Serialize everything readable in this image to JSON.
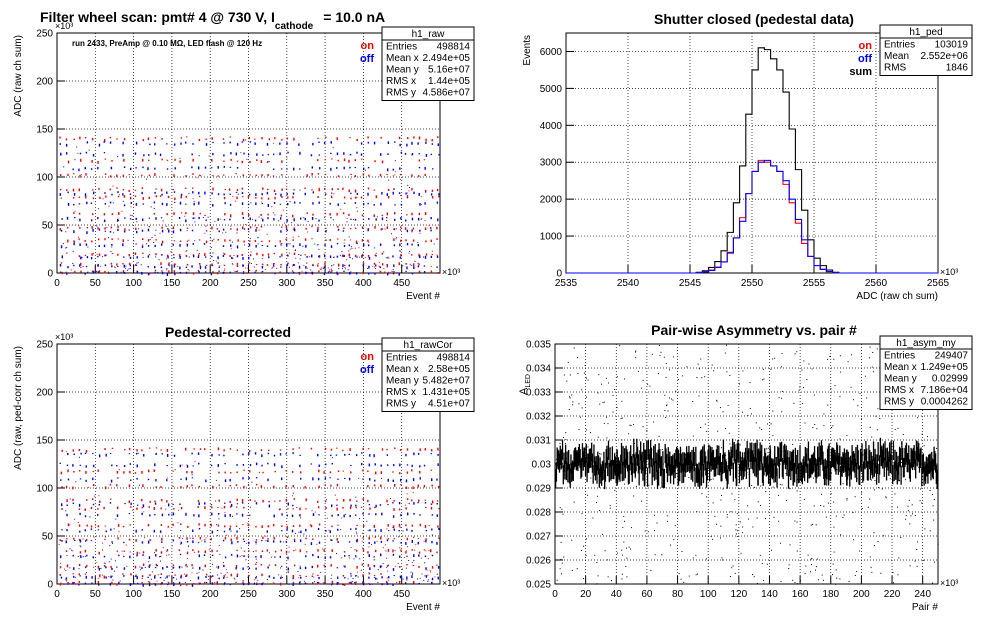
{
  "page": {
    "main_title_prefix": "Filter wheel scan: pmt#   4 @   730 V, I",
    "main_title_sub": "cathode",
    "main_title_suffix": "= 10.0 nA",
    "run_note": "run 2433, PreAmp @ 0.10 MΩ, LED flash @  120 Hz"
  },
  "chart_data": [
    {
      "id": "h1_raw",
      "type": "scatter",
      "title": "",
      "xlabel": "Event #",
      "ylabel": "ADC (raw ch sum)",
      "x_exponent": "×10³",
      "y_exponent": "×10³",
      "xlim": [
        0,
        500
      ],
      "ylim": [
        0,
        250
      ],
      "xticks": [
        0,
        50,
        100,
        150,
        200,
        250,
        300,
        350,
        400,
        450
      ],
      "yticks": [
        0,
        50,
        100,
        150,
        200,
        250
      ],
      "grid": true,
      "legend": [
        {
          "label": "on",
          "color": "#ff0000"
        },
        {
          "label": "off",
          "color": "#0000ff"
        }
      ],
      "stats": {
        "name": "h1_raw",
        "rows": [
          [
            "Entries",
            "498814"
          ],
          [
            "Mean x",
            "2.494e+05"
          ],
          [
            "Mean y",
            "5.16e+07"
          ],
          [
            "RMS x",
            "1.44e+05"
          ],
          [
            "RMS y",
            "4.586e+07"
          ]
        ]
      },
      "series": [
        {
          "name": "on",
          "color": "#ff0000",
          "levels": [
            2,
            10,
            20,
            35,
            48,
            62,
            80,
            88,
            103,
            118,
            141
          ]
        },
        {
          "name": "off",
          "color": "#0000ff",
          "levels": [
            1,
            8,
            18,
            30,
            45,
            57,
            73,
            84,
            110,
            125,
            136
          ]
        }
      ]
    },
    {
      "id": "h1_ped",
      "type": "line",
      "title": "Shutter closed (pedestal data)",
      "xlabel": "ADC (raw ch sum)",
      "ylabel": "Events",
      "x_exponent": "×10³",
      "xlim": [
        2535,
        2565
      ],
      "ylim": [
        0,
        6500
      ],
      "xticks": [
        2535,
        2540,
        2545,
        2550,
        2555,
        2560,
        2565
      ],
      "yticks": [
        0,
        1000,
        2000,
        3000,
        4000,
        5000,
        6000
      ],
      "grid": true,
      "legend": [
        {
          "label": "on",
          "color": "#ff0000"
        },
        {
          "label": "off",
          "color": "#0000ff"
        },
        {
          "label": "sum",
          "color": "#000000"
        }
      ],
      "stats": {
        "name": "h1_ped",
        "rows": [
          [
            "Entries",
            "103019"
          ],
          [
            "Mean",
            "2.552e+06"
          ],
          [
            "RMS",
            "1846"
          ]
        ]
      },
      "bin_edges": [
        2545.5,
        2546,
        2546.5,
        2547,
        2547.5,
        2548,
        2548.5,
        2549,
        2549.5,
        2550,
        2550.5,
        2551,
        2551.5,
        2552,
        2552.5,
        2553,
        2553.5,
        2554,
        2554.5,
        2555,
        2555.5,
        2556,
        2556.5,
        2557
      ],
      "series": [
        {
          "name": "sum",
          "color": "#000000",
          "values": [
            20,
            60,
            150,
            310,
            600,
            1100,
            1900,
            2900,
            4300,
            5500,
            6100,
            6050,
            5800,
            5500,
            4900,
            3900,
            2800,
            1700,
            900,
            400,
            200,
            80,
            20
          ]
        },
        {
          "name": "on",
          "color": "#ff0000",
          "values": [
            10,
            30,
            80,
            160,
            300,
            560,
            950,
            1500,
            2150,
            2750,
            3050,
            3000,
            2900,
            2750,
            2400,
            1900,
            1350,
            800,
            450,
            200,
            100,
            40,
            10
          ]
        },
        {
          "name": "off",
          "color": "#0000ff",
          "values": [
            10,
            30,
            70,
            150,
            300,
            540,
            950,
            1400,
            2150,
            2750,
            3000,
            3050,
            2900,
            2750,
            2500,
            2000,
            1450,
            900,
            450,
            200,
            100,
            40,
            10
          ]
        }
      ]
    },
    {
      "id": "h1_rawCor",
      "type": "scatter",
      "title": "Pedestal-corrected",
      "xlabel": "Event #",
      "ylabel": "ADC (raw, ped-corr ch sum)",
      "x_exponent": "×10³",
      "y_exponent": "×10³",
      "xlim": [
        0,
        500
      ],
      "ylim": [
        0,
        250
      ],
      "xticks": [
        0,
        50,
        100,
        150,
        200,
        250,
        300,
        350,
        400,
        450
      ],
      "yticks": [
        0,
        50,
        100,
        150,
        200,
        250
      ],
      "grid": true,
      "legend": [
        {
          "label": "on",
          "color": "#ff0000"
        },
        {
          "label": "off",
          "color": "#0000ff"
        }
      ],
      "stats": {
        "name": "h1_rawCor",
        "rows": [
          [
            "Entries",
            "498814"
          ],
          [
            "Mean x",
            "2.58e+05"
          ],
          [
            "Mean y",
            "5.482e+07"
          ],
          [
            "RMS x",
            "1.431e+05"
          ],
          [
            "RMS y",
            "4.51e+07"
          ]
        ]
      },
      "series": [
        {
          "name": "on",
          "color": "#ff0000",
          "levels": [
            2,
            10,
            20,
            35,
            48,
            62,
            80,
            88,
            103,
            118,
            141
          ]
        },
        {
          "name": "off",
          "color": "#0000ff",
          "levels": [
            1,
            8,
            18,
            30,
            45,
            57,
            73,
            84,
            110,
            125,
            136
          ]
        }
      ]
    },
    {
      "id": "h1_asym_my",
      "type": "scatter",
      "title": "Pair-wise Asymmetry vs. pair #",
      "xlabel": "Pair #",
      "ylabel": "A_LED",
      "x_exponent": "×10³",
      "xlim": [
        0,
        250
      ],
      "ylim": [
        0.025,
        0.035
      ],
      "xticks": [
        0,
        20,
        40,
        60,
        80,
        100,
        120,
        140,
        160,
        180,
        200,
        220,
        240
      ],
      "yticks": [
        0.025,
        0.026,
        0.027,
        0.028,
        0.029,
        0.03,
        0.031,
        0.032,
        0.033,
        0.034,
        0.035
      ],
      "grid": true,
      "stats": {
        "name": "h1_asym_my",
        "rows": [
          [
            "Entries",
            "249407"
          ],
          [
            "Mean x",
            "1.249e+05"
          ],
          [
            "Mean y",
            "0.02999"
          ],
          [
            "RMS x",
            "7.186e+04"
          ],
          [
            "RMS y",
            "0.0004262"
          ]
        ]
      },
      "series": [
        {
          "name": "",
          "color": "#000000",
          "band_center": 0.03,
          "band_halfwidth": 0.0006,
          "spike_x": [
            40,
            58,
            67,
            80,
            95,
            118,
            132,
            140,
            155,
            178,
            190
          ]
        }
      ]
    }
  ]
}
